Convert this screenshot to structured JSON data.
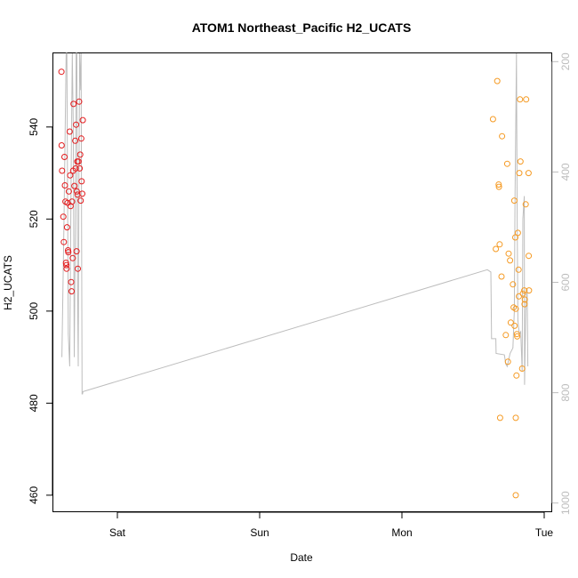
{
  "chart_data": {
    "type": "scatter",
    "title": "ATOM1 Northeast_Pacific H2_UCATS",
    "xlabel": "Date",
    "ylabel": "H2_UCATS",
    "x_ticks": [
      {
        "day": 1,
        "label": "Sat"
      },
      {
        "day": 2,
        "label": "Sun"
      },
      {
        "day": 3,
        "label": "Mon"
      },
      {
        "day": 4,
        "label": "Tue"
      }
    ],
    "xlim": [
      0.55,
      4.05
    ],
    "ylim": [
      456.5,
      556
    ],
    "y_ticks": [
      460,
      480,
      500,
      520,
      540
    ],
    "y2_ticks": [
      200,
      400,
      600,
      800,
      1000
    ],
    "y2lim": [
      1015,
      185
    ],
    "grid": false,
    "legend": "none",
    "colors": {
      "series1": "#e41a1c",
      "series2": "#f59a23",
      "altitude": "#bdbdbd"
    },
    "series": [
      {
        "color": "#e41a1c",
        "points": [
          [
            0.607,
            552
          ],
          [
            0.608,
            536
          ],
          [
            0.611,
            530.5
          ],
          [
            0.62,
            520.5
          ],
          [
            0.624,
            515
          ],
          [
            0.628,
            533.5
          ],
          [
            0.631,
            527.3
          ],
          [
            0.635,
            523.8
          ],
          [
            0.639,
            510.5
          ],
          [
            0.641,
            510
          ],
          [
            0.643,
            509.2
          ],
          [
            0.646,
            518.2
          ],
          [
            0.65,
            523.5
          ],
          [
            0.653,
            513.2
          ],
          [
            0.655,
            512.8
          ],
          [
            0.659,
            526
          ],
          [
            0.665,
            539
          ],
          [
            0.668,
            529.5
          ],
          [
            0.671,
            522.8
          ],
          [
            0.675,
            506.3
          ],
          [
            0.678,
            504.3
          ],
          [
            0.681,
            523.8
          ],
          [
            0.686,
            511.5
          ],
          [
            0.689,
            530.5
          ],
          [
            0.692,
            545
          ],
          [
            0.698,
            527.2
          ],
          [
            0.704,
            537
          ],
          [
            0.707,
            531
          ],
          [
            0.71,
            540.5
          ],
          [
            0.713,
            513
          ],
          [
            0.715,
            526
          ],
          [
            0.718,
            532.5
          ],
          [
            0.72,
            525.3
          ],
          [
            0.722,
            509.2
          ],
          [
            0.727,
            532.5
          ],
          [
            0.731,
            545.5
          ],
          [
            0.735,
            531
          ],
          [
            0.739,
            534
          ],
          [
            0.742,
            524
          ],
          [
            0.746,
            537.5
          ],
          [
            0.749,
            528.2
          ],
          [
            0.753,
            525.5
          ],
          [
            0.757,
            541.5
          ]
        ]
      },
      {
        "color": "#f59a23",
        "points": [
          [
            3.64,
            541.7
          ],
          [
            3.66,
            513.5
          ],
          [
            3.67,
            550
          ],
          [
            3.68,
            527.5
          ],
          [
            3.682,
            527
          ],
          [
            3.687,
            514.5
          ],
          [
            3.69,
            476.8
          ],
          [
            3.7,
            507.5
          ],
          [
            3.704,
            538
          ],
          [
            3.73,
            494.8
          ],
          [
            3.74,
            532
          ],
          [
            3.745,
            489
          ],
          [
            3.75,
            512.5
          ],
          [
            3.76,
            511
          ],
          [
            3.765,
            497.5
          ],
          [
            3.78,
            505.8
          ],
          [
            3.785,
            500.8
          ],
          [
            3.79,
            524
          ],
          [
            3.792,
            496.8
          ],
          [
            3.797,
            516
          ],
          [
            3.8,
            500.5
          ],
          [
            3.805,
            486
          ],
          [
            3.808,
            495
          ],
          [
            3.81,
            494.5
          ],
          [
            3.815,
            517
          ],
          [
            3.82,
            509
          ],
          [
            3.822,
            503.2
          ],
          [
            3.825,
            530
          ],
          [
            3.83,
            546
          ],
          [
            3.833,
            532.5
          ],
          [
            3.845,
            487.5
          ],
          [
            3.85,
            503.8
          ],
          [
            3.86,
            504.5
          ],
          [
            3.862,
            501.5
          ],
          [
            3.864,
            502.5
          ],
          [
            3.87,
            523.2
          ],
          [
            3.873,
            546
          ],
          [
            3.89,
            530
          ],
          [
            3.891,
            512
          ],
          [
            3.893,
            504.5
          ],
          [
            3.8,
            476.8
          ],
          [
            3.8,
            460
          ]
        ]
      }
    ],
    "altitude_line": [
      [
        0.61,
        490
      ],
      [
        0.625,
        520
      ],
      [
        0.64,
        556
      ],
      [
        0.645,
        556
      ],
      [
        0.655,
        495
      ],
      [
        0.665,
        488
      ],
      [
        0.675,
        530
      ],
      [
        0.683,
        556
      ],
      [
        0.69,
        540
      ],
      [
        0.697,
        490
      ],
      [
        0.705,
        520
      ],
      [
        0.71,
        556
      ],
      [
        0.715,
        556
      ],
      [
        0.72,
        505
      ],
      [
        0.725,
        488
      ],
      [
        0.73,
        530
      ],
      [
        0.735,
        556
      ],
      [
        0.742,
        548
      ],
      [
        0.745,
        556
      ],
      [
        0.749,
        515
      ],
      [
        0.752,
        482
      ],
      [
        0.755,
        482
      ],
      [
        0.758,
        482.5
      ],
      [
        3.6,
        509
      ],
      [
        3.625,
        508.5
      ],
      [
        3.63,
        494
      ],
      [
        3.66,
        494
      ],
      [
        3.662,
        490.8
      ],
      [
        3.72,
        490.5
      ],
      [
        3.73,
        488.5
      ],
      [
        3.74,
        488
      ],
      [
        3.76,
        490.8
      ],
      [
        3.78,
        492
      ],
      [
        3.79,
        500
      ],
      [
        3.795,
        525
      ],
      [
        3.8,
        540
      ],
      [
        3.805,
        556
      ],
      [
        3.81,
        520
      ],
      [
        3.815,
        498
      ],
      [
        3.825,
        495
      ],
      [
        3.835,
        495.5
      ],
      [
        3.845,
        487
      ],
      [
        3.85,
        520
      ],
      [
        3.86,
        525
      ],
      [
        3.862,
        484
      ],
      [
        3.87,
        500
      ],
      [
        3.88,
        505
      ],
      [
        3.885,
        488
      ]
    ]
  }
}
